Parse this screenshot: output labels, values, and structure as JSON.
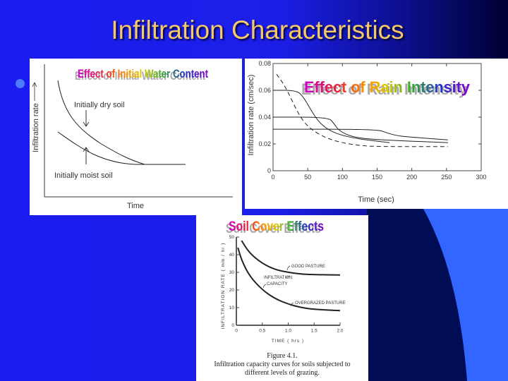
{
  "slide": {
    "title": "Infiltration Characteristics",
    "colors": {
      "title": "#f5c86a",
      "background": "#1a1cf0",
      "accent_arc": "#3366ff"
    }
  },
  "chart_data": [
    {
      "type": "line",
      "title": "Effect of Initial Water Content",
      "xlabel": "Time",
      "ylabel": "Infiltration rate",
      "grid": false,
      "annotations": [
        "Initially dry soil",
        "Initially moist soil"
      ]
    },
    {
      "type": "line",
      "title": "Effect of Rain Intensity",
      "xlabel": "Time  (sec)",
      "ylabel": "Infiltration rate (cm/sec)",
      "xlim": [
        0,
        300
      ],
      "ylim": [
        0,
        0.08
      ],
      "grid": false,
      "xticks": [
        "0",
        "50",
        "100",
        "150",
        "200",
        "250",
        "300"
      ],
      "yticks": [
        "0",
        "0.02",
        "0.04",
        "0.06",
        "0.08"
      ],
      "series": [
        {
          "style": "solid",
          "points": [
            [
              0,
              0.06
            ],
            [
              35,
              0.06
            ],
            [
              45,
              0.054
            ],
            [
              55,
              0.045
            ],
            [
              65,
              0.037
            ],
            [
              78,
              0.031
            ],
            [
              95,
              0.027
            ],
            [
              120,
              0.024
            ],
            [
              150,
              0.022
            ],
            [
              168,
              0.021
            ]
          ]
        },
        {
          "style": "solid",
          "points": [
            [
              0,
              0.04
            ],
            [
              80,
              0.04
            ],
            [
              88,
              0.035
            ],
            [
              95,
              0.03
            ],
            [
              110,
              0.026
            ],
            [
              130,
              0.024
            ],
            [
              160,
              0.023
            ],
            [
              200,
              0.022
            ],
            [
              252,
              0.021
            ]
          ]
        },
        {
          "style": "solid",
          "points": [
            [
              0,
              0.031
            ],
            [
              150,
              0.031
            ],
            [
              165,
              0.028
            ],
            [
              180,
              0.026
            ],
            [
              200,
              0.025
            ],
            [
              252,
              0.023
            ]
          ]
        },
        {
          "style": "dashed",
          "points": [
            [
              5,
              0.072
            ],
            [
              15,
              0.065
            ],
            [
              25,
              0.055
            ],
            [
              35,
              0.044
            ],
            [
              45,
              0.036
            ],
            [
              55,
              0.031
            ],
            [
              70,
              0.026
            ],
            [
              90,
              0.022
            ],
            [
              120,
              0.019
            ],
            [
              150,
              0.018
            ],
            [
              252,
              0.018
            ]
          ]
        }
      ]
    },
    {
      "type": "line",
      "title": "Soil Cover Effects",
      "xlabel": "TIME  ( hrs )",
      "ylabel": "INFILTRATION RATE  ( mm / hr )",
      "xlim": [
        0,
        2.0
      ],
      "ylim": [
        0,
        50
      ],
      "grid": false,
      "xticks": [
        "0",
        "0.5",
        "1.0",
        "1.5",
        "2.0"
      ],
      "yticks": [
        "0",
        "10",
        "20",
        "30",
        "40",
        "50"
      ],
      "annotations": [
        "GOOD PASTURE",
        "INFILTRATION",
        "CAPACITY",
        "OVERGRAZED PASTURE"
      ],
      "series": [
        {
          "name": "GOOD PASTURE",
          "points": [
            [
              0.1,
              48
            ],
            [
              0.25,
              41
            ],
            [
              0.5,
              35
            ],
            [
              0.75,
              31.5
            ],
            [
              1.0,
              30
            ],
            [
              1.25,
              29
            ],
            [
              1.5,
              28.7
            ],
            [
              2.0,
              28.5
            ]
          ]
        },
        {
          "name": "OVERGRAZED PASTURE",
          "points": [
            [
              0.03,
              44
            ],
            [
              0.1,
              37
            ],
            [
              0.25,
              28
            ],
            [
              0.5,
              20
            ],
            [
              0.75,
              15
            ],
            [
              1.0,
              12
            ],
            [
              1.25,
              10
            ],
            [
              1.5,
              9
            ],
            [
              2.0,
              8.3
            ]
          ]
        }
      ],
      "caption": [
        "Figure 4.1.",
        "Infiltration capacity curves for soils subjected to",
        "different levels of grazing."
      ]
    }
  ]
}
